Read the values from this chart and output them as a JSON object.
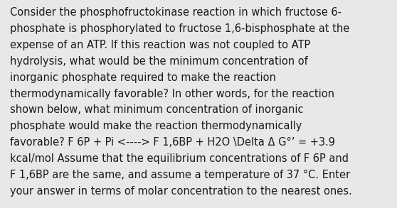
{
  "background_color": "#e8e8e8",
  "text_color": "#1a1a1a",
  "font_size": 10.5,
  "fig_width": 5.58,
  "fig_height": 2.93,
  "dpi": 100,
  "wrapped_lines": [
    "Consider the phosphofructokinase reaction in which fructose 6-",
    "phosphate is phosphorylated to fructose 1,6-bisphosphate at the",
    "expense of an ATP. If this reaction was not coupled to ATP",
    "hydrolysis, what would be the minimum concentration of",
    "inorganic phosphate required to make the reaction",
    "thermodynamically favorable? In other words, for the reaction",
    "shown below, what minimum concentration of inorganic",
    "phosphate would make the reaction thermodynamically",
    "favorable? F 6P + Pi <----> F 1,6BP + H2O \\Delta Δ G°’ = +3.9",
    "kcal/mol Assume that the equilibrium concentrations of F 6P and",
    "F 1,6BP are the same, and assume a temperature of 37 °C. Enter",
    "your answer in terms of molar concentration to the nearest ones."
  ]
}
